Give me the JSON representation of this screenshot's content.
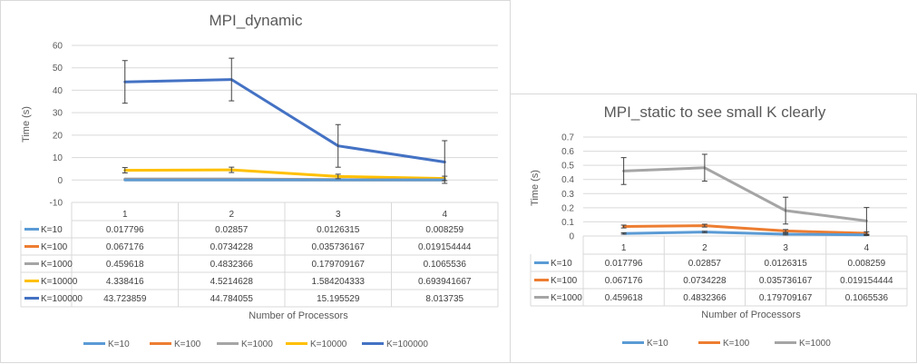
{
  "chart_data": [
    {
      "type": "line",
      "title": "MPI_dynamic",
      "xlabel": "Number of Processors",
      "ylabel": "Time (s)",
      "ylim": [
        -10,
        60
      ],
      "yticks": [
        -10,
        0,
        10,
        20,
        30,
        40,
        50,
        60
      ],
      "grid": true,
      "legend_position": "bottom",
      "error_bars": "on K=100000 and K=10000 series",
      "categories": [
        "1",
        "2",
        "3",
        "4"
      ],
      "series": [
        {
          "name": "K=10",
          "color": "#5B9BD5",
          "values": [
            0.017796,
            0.02857,
            0.0126315,
            0.008259
          ],
          "labels": [
            "0.017796",
            "0.02857",
            "0.0126315",
            "0.008259"
          ]
        },
        {
          "name": "K=100",
          "color": "#ED7D31",
          "values": [
            0.067176,
            0.0734228,
            0.035736167,
            0.019154444
          ],
          "labels": [
            "0.067176",
            "0.0734228",
            "0.035736167",
            "0.019154444"
          ]
        },
        {
          "name": "K=1000",
          "color": "#A5A5A5",
          "values": [
            0.459618,
            0.4832366,
            0.179709167,
            0.1065536
          ],
          "labels": [
            "0.459618",
            "0.4832366",
            "0.179709167",
            "0.1065536"
          ]
        },
        {
          "name": "K=10000",
          "color": "#FFC000",
          "values": [
            4.338416,
            4.5214628,
            1.584204333,
            0.693941667
          ],
          "labels": [
            "4.338416",
            "4.5214628",
            "1.584204333",
            "0.693941667"
          ],
          "error": [
            1.2,
            1.2,
            1.0,
            1.0
          ]
        },
        {
          "name": "K=100000",
          "color": "#4472C4",
          "values": [
            43.723859,
            44.784055,
            15.195529,
            8.013735
          ],
          "labels": [
            "43.723859",
            "44.784055",
            "15.195529",
            "8.013735"
          ],
          "error": [
            9.5,
            9.5,
            9.5,
            9.5
          ]
        }
      ]
    },
    {
      "type": "line",
      "title": "MPI_static to see small K clearly",
      "xlabel": "Number of Processors",
      "ylabel": "Time (s)",
      "ylim": [
        0,
        0.7
      ],
      "yticks": [
        0,
        0.1,
        0.2,
        0.3,
        0.4,
        0.5,
        0.6,
        0.7
      ],
      "grid": true,
      "legend_position": "bottom",
      "error_bars": "on all series",
      "categories": [
        "1",
        "2",
        "3",
        "4"
      ],
      "series": [
        {
          "name": "K=10",
          "color": "#5B9BD5",
          "values": [
            0.017796,
            0.02857,
            0.0126315,
            0.008259
          ],
          "labels": [
            "0.017796",
            "0.02857",
            "0.0126315",
            "0.008259"
          ],
          "error": [
            0.005,
            0.005,
            0.005,
            0.005
          ]
        },
        {
          "name": "K=100",
          "color": "#ED7D31",
          "values": [
            0.067176,
            0.0734228,
            0.035736167,
            0.019154444
          ],
          "labels": [
            "0.067176",
            "0.0734228",
            "0.035736167",
            "0.019154444"
          ],
          "error": [
            0.01,
            0.01,
            0.01,
            0.01
          ]
        },
        {
          "name": "K=1000",
          "color": "#A5A5A5",
          "values": [
            0.459618,
            0.4832366,
            0.179709167,
            0.1065536
          ],
          "labels": [
            "0.459618",
            "0.4832366",
            "0.179709167",
            "0.1065536"
          ],
          "error": [
            0.095,
            0.095,
            0.095,
            0.095
          ]
        }
      ]
    }
  ]
}
